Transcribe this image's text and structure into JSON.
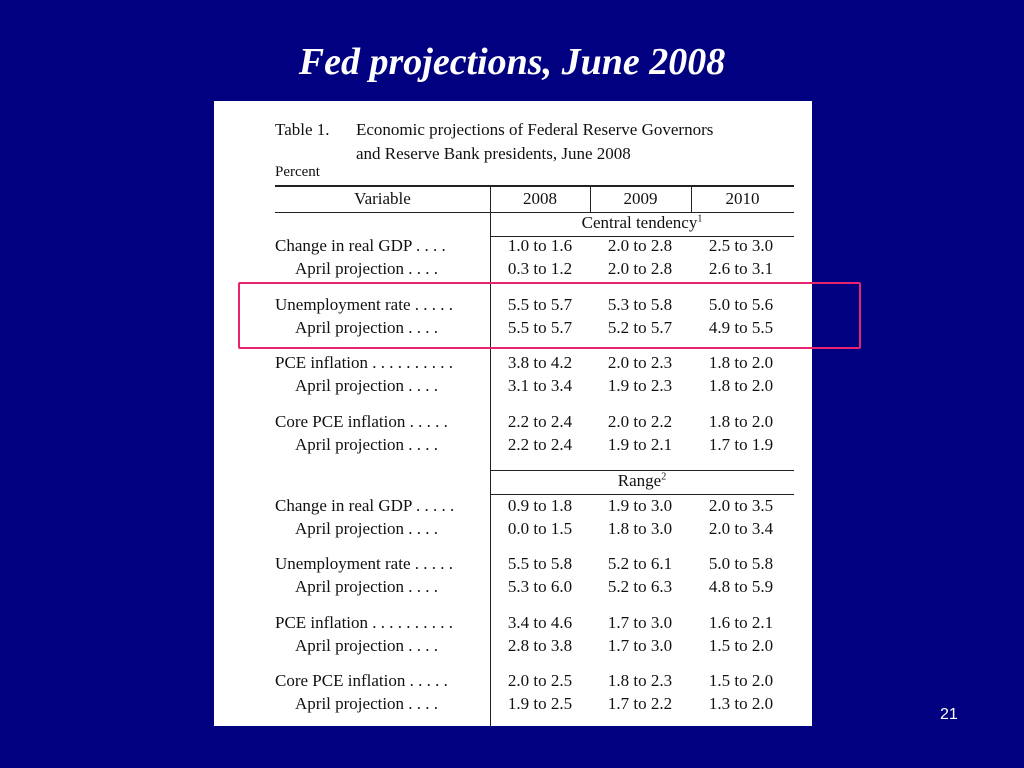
{
  "slide": {
    "title": "Fed projections, June 2008",
    "page_number": "21"
  },
  "table": {
    "label": "Table 1.",
    "caption_line1": "Economic projections of Federal Reserve Governors",
    "caption_line2": "and Reserve Bank presidents, June 2008",
    "unit": "Percent",
    "headers": [
      "Variable",
      "2008",
      "2009",
      "2010"
    ],
    "sections": [
      {
        "title": "Central tendency",
        "note": "1",
        "rows": [
          {
            "label": "Change in real GDP  . . . .",
            "values": [
              "1.0 to 1.6",
              "2.0 to 2.8",
              "2.5 to 3.0"
            ]
          },
          {
            "label": "April projection . . . .",
            "values": [
              "0.3 to 1.2",
              "2.0 to 2.8",
              "2.6 to 3.1"
            ]
          },
          {
            "label": "Unemployment rate . . . . .",
            "values": [
              "5.5 to 5.7",
              "5.3 to 5.8",
              "5.0 to 5.6"
            ]
          },
          {
            "label": "April projection . . . .",
            "values": [
              "5.5 to 5.7",
              "5.2 to 5.7",
              "4.9 to 5.5"
            ]
          },
          {
            "label": "PCE inflation . . . . . . . . . .",
            "values": [
              "3.8 to 4.2",
              "2.0 to 2.3",
              "1.8 to 2.0"
            ]
          },
          {
            "label": "April projection . . . .",
            "values": [
              "3.1 to 3.4",
              "1.9 to 2.3",
              "1.8 to 2.0"
            ]
          },
          {
            "label": "Core PCE inflation . . . . .",
            "values": [
              "2.2 to 2.4",
              "2.0 to 2.2",
              "1.8 to 2.0"
            ]
          },
          {
            "label": "April projection . . . .",
            "values": [
              "2.2 to 2.4",
              "1.9 to 2.1",
              "1.7 to 1.9"
            ]
          }
        ]
      },
      {
        "title": "Range",
        "note": "2",
        "rows": [
          {
            "label": "Change in real GDP . . . . .",
            "values": [
              "0.9 to 1.8",
              "1.9 to 3.0",
              "2.0 to 3.5"
            ]
          },
          {
            "label": "April projection . . . .",
            "values": [
              "0.0 to 1.5",
              "1.8 to 3.0",
              "2.0 to 3.4"
            ]
          },
          {
            "label": "Unemployment rate . . . . .",
            "values": [
              "5.5 to 5.8",
              "5.2 to 6.1",
              "5.0 to 5.8"
            ]
          },
          {
            "label": "April projection . . . .",
            "values": [
              "5.3 to 6.0",
              "5.2 to 6.3",
              "4.8 to 5.9"
            ]
          },
          {
            "label": "PCE inflation . . . . . . . . . .",
            "values": [
              "3.4 to 4.6",
              "1.7 to 3.0",
              "1.6 to 2.1"
            ]
          },
          {
            "label": "April projection . . . .",
            "values": [
              "2.8 to 3.8",
              "1.7 to 3.0",
              "1.5 to 2.0"
            ]
          },
          {
            "label": "Core PCE inflation . . . . .",
            "values": [
              "2.0 to 2.5",
              "1.8 to 2.3",
              "1.5 to 2.0"
            ]
          },
          {
            "label": "April projection . . . .",
            "values": [
              "1.9 to 2.5",
              "1.7 to 2.2",
              "1.3 to 2.0"
            ]
          }
        ]
      }
    ]
  },
  "highlight_color": "#e8246e",
  "background_color": "#000080"
}
